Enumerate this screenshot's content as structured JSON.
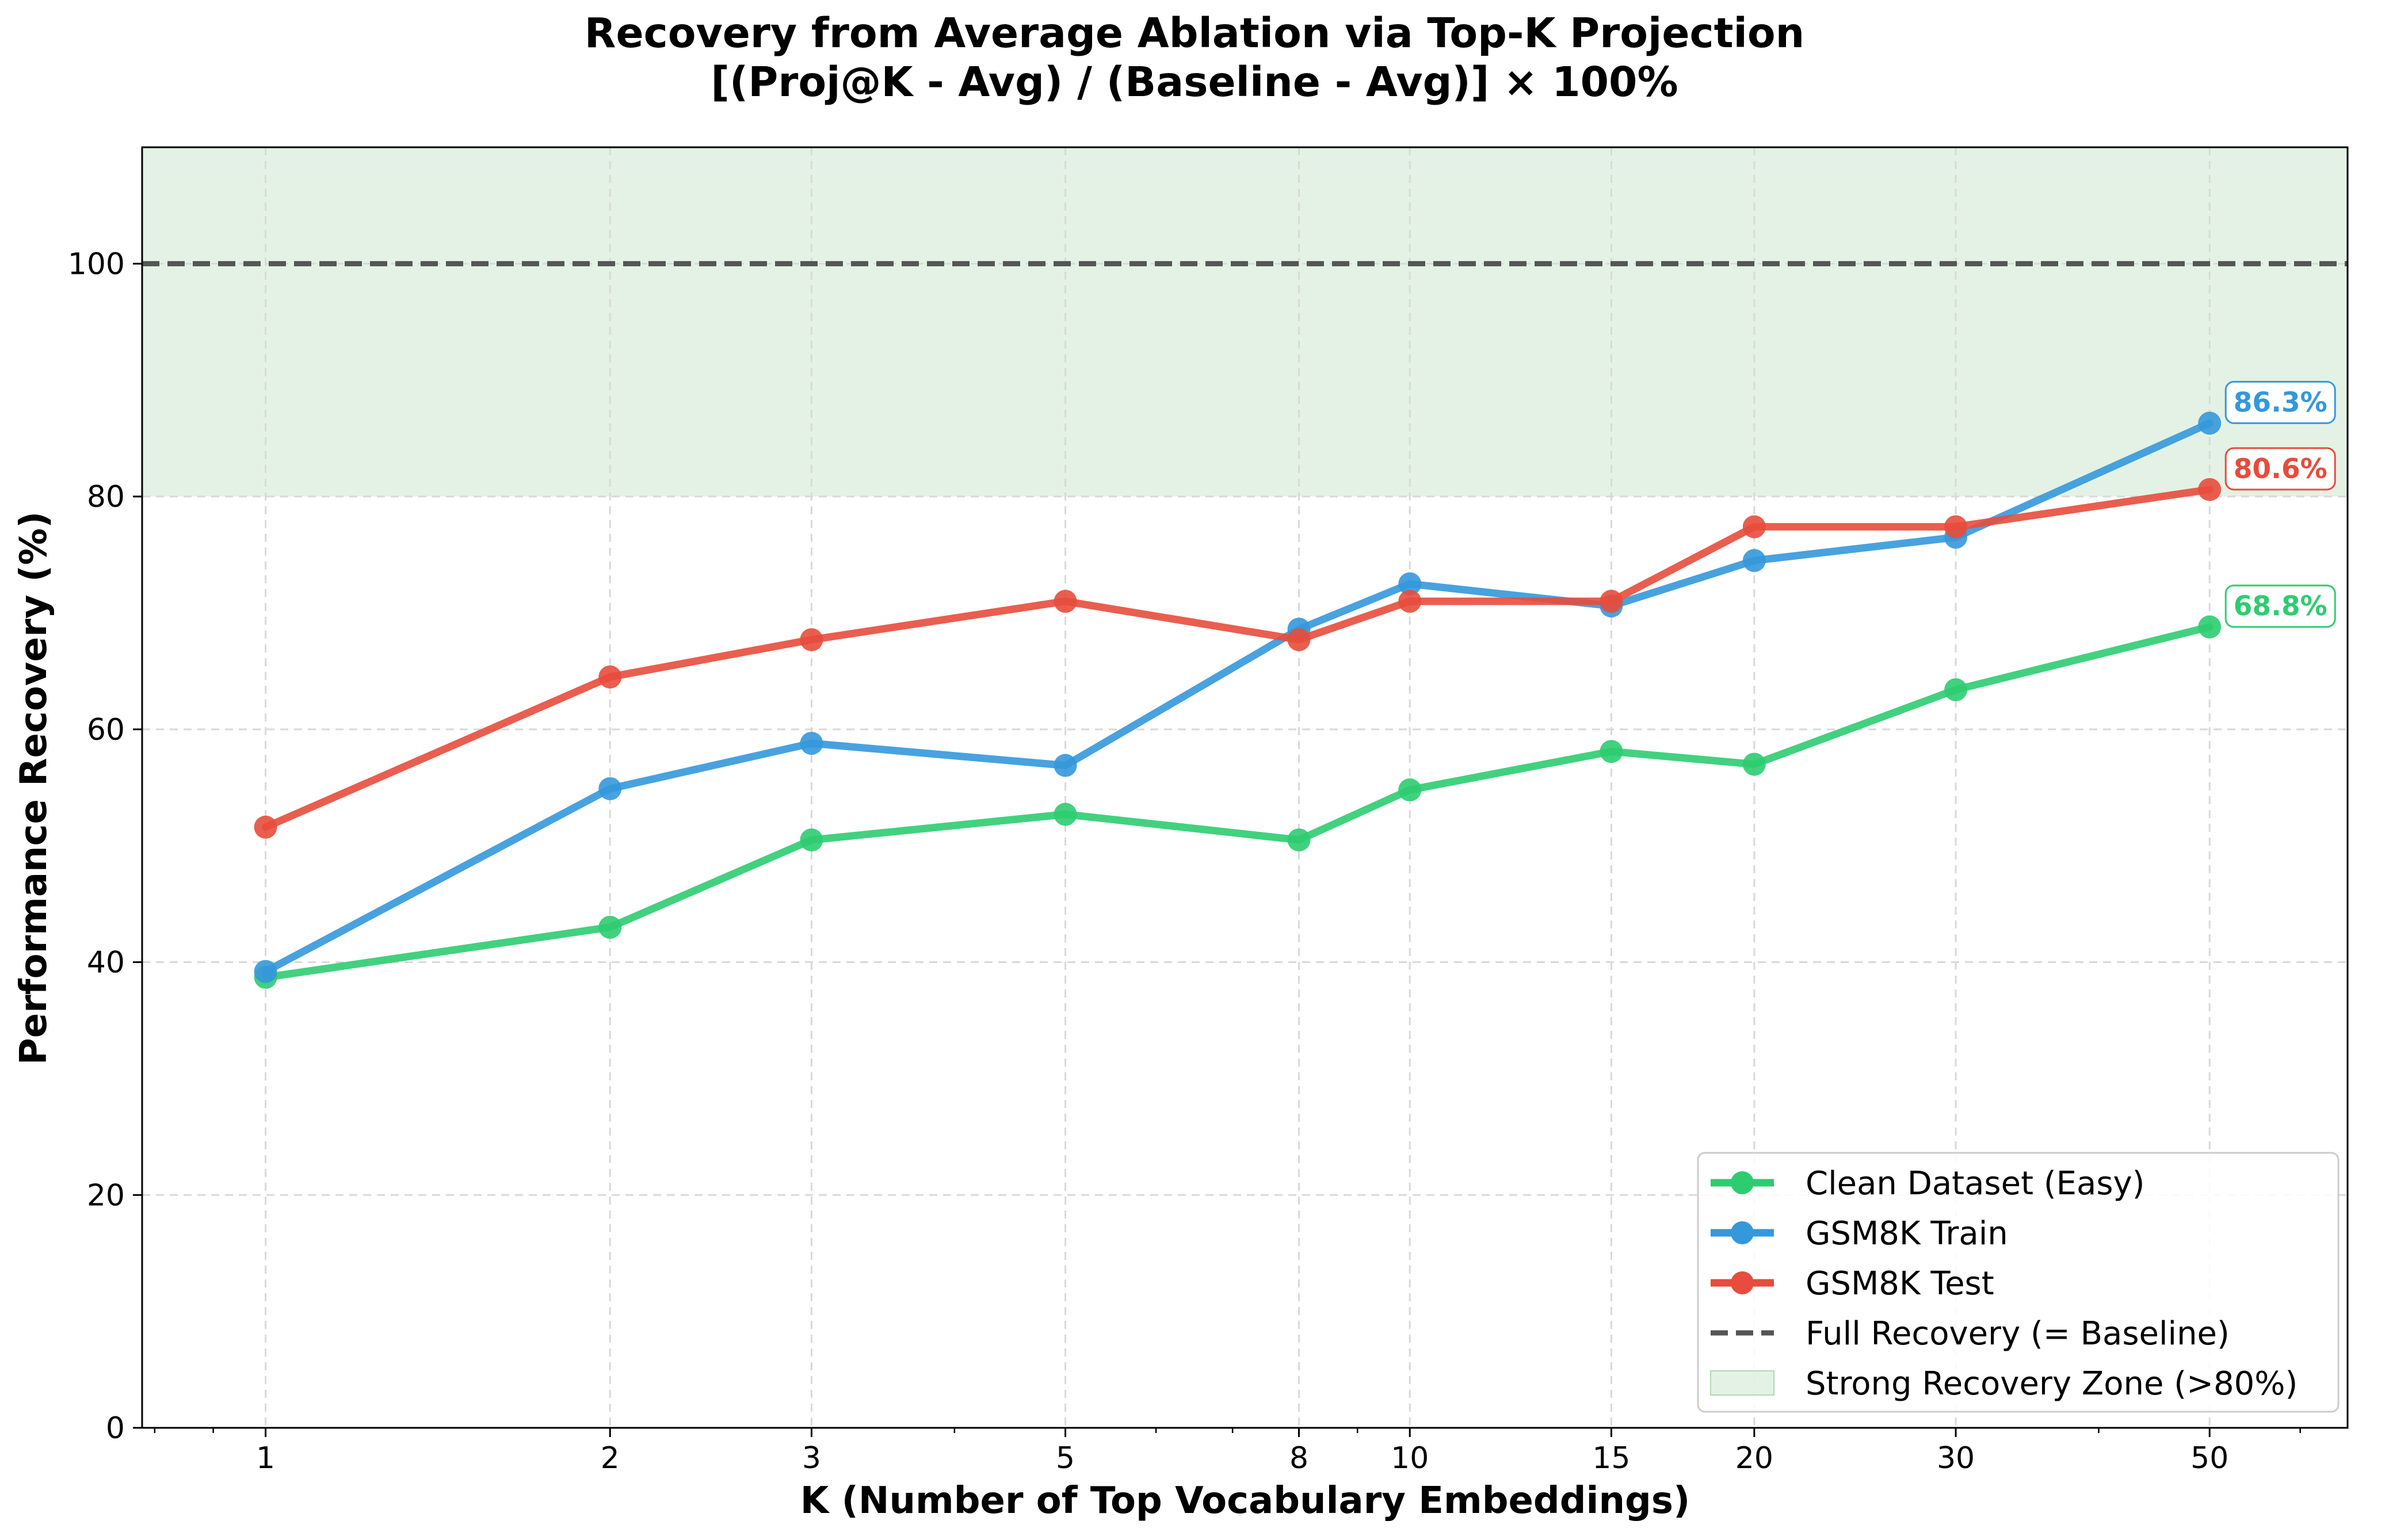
{
  "chart_data": {
    "type": "line",
    "title": "Recovery from Average Ablation via Top-K Projection",
    "subtitle": "[(Proj@K - Avg) / (Baseline - Avg)] × 100%",
    "xlabel": "K (Number of Top Vocabulary Embeddings)",
    "ylabel": "Performance Recovery (%)",
    "x_scale": "log",
    "xlim": [
      0.78,
      66
    ],
    "ylim": [
      0,
      110
    ],
    "grid": true,
    "legend_position": "lower right",
    "x": [
      1,
      2,
      3,
      5,
      8,
      10,
      15,
      20,
      30,
      50
    ],
    "x_tick_labels": [
      "1",
      "2",
      "3",
      "5",
      "8",
      "10",
      "15",
      "20",
      "30",
      "50"
    ],
    "y_ticks": [
      0,
      20,
      40,
      60,
      80,
      100
    ],
    "series": [
      {
        "name": "Clean Dataset (Easy)",
        "color": "#2ecc71",
        "values": [
          38.7,
          43.0,
          50.5,
          52.7,
          50.5,
          54.8,
          58.1,
          57.0,
          63.4,
          68.8
        ],
        "end_label": "68.8%"
      },
      {
        "name": "GSM8K Train",
        "color": "#3498db",
        "values": [
          39.2,
          54.9,
          58.8,
          56.9,
          68.6,
          72.5,
          70.6,
          74.5,
          76.5,
          86.3
        ],
        "end_label": "86.3%"
      },
      {
        "name": "GSM8K Test",
        "color": "#e74c3c",
        "values": [
          51.6,
          64.5,
          67.7,
          71.0,
          67.7,
          71.0,
          71.0,
          77.4,
          77.4,
          80.6
        ],
        "end_label": "80.6%"
      }
    ],
    "reference_line": {
      "name": "Full Recovery (= Baseline)",
      "value": 100,
      "color": "#555555",
      "style": "dashed"
    },
    "shaded_zone": {
      "name": "Strong Recovery Zone (>80%)",
      "from": 80,
      "to": 110,
      "color": "#c8e6c9"
    }
  }
}
